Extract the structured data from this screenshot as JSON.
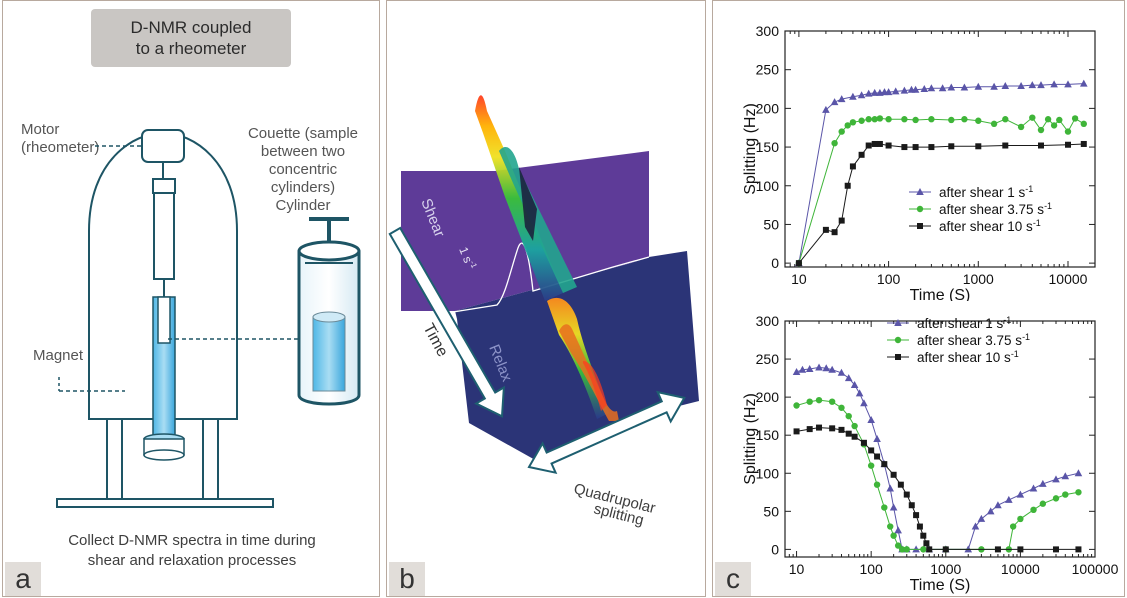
{
  "panel_a": {
    "letter": "a",
    "title_line1": "D-NMR coupled",
    "title_line2": "to a rheometer",
    "motor_line1": "Motor",
    "motor_line2": "(rheometer)",
    "couette_lines": [
      "Couette (sample",
      "between two",
      "concentric",
      "cylinders)",
      "Cylinder"
    ],
    "magnet": "Magnet",
    "caption_line1": "Collect D-NMR spectra in time during",
    "caption_line2": "shear and relaxation processes"
  },
  "panel_b": {
    "letter": "b",
    "shear": "Shear",
    "rate": "1 s",
    "rate_sup": "-1",
    "relax": "Relax",
    "time": "Time",
    "quad_line1": "Quadrupolar",
    "quad_line2": "splitting"
  },
  "panel_c": {
    "letter": "c"
  },
  "chart_data": [
    {
      "type": "scatter",
      "xlabel": "Time (S)",
      "ylabel": "Splitting (Hz)",
      "xscale": "log",
      "xlim": [
        7,
        20000
      ],
      "ylim": [
        -5,
        300
      ],
      "yticks": [
        0,
        50,
        100,
        150,
        200,
        250,
        300
      ],
      "xticks": [
        10,
        100,
        1000,
        10000
      ],
      "xtick_labels": [
        "10",
        "100",
        "1000",
        "10000"
      ],
      "legend_position": "center-right",
      "series": [
        {
          "name": "after shear 1 s",
          "name_sup": "-1",
          "color": "#5a55a8",
          "marker": "triangle",
          "x": [
            10,
            20,
            25,
            30,
            40,
            50,
            60,
            70,
            80,
            90,
            100,
            120,
            150,
            180,
            200,
            250,
            300,
            400,
            500,
            700,
            1000,
            1500,
            2000,
            3000,
            4000,
            5000,
            7000,
            10000,
            15000
          ],
          "y": [
            0,
            198,
            208,
            212,
            215,
            217,
            219,
            220,
            220,
            221,
            221,
            222,
            223,
            224,
            224,
            225,
            226,
            226,
            227,
            227,
            228,
            228,
            229,
            229,
            230,
            230,
            231,
            231,
            232
          ]
        },
        {
          "name": "after shear 3.75 s",
          "name_sup": "-1",
          "color": "#3fb539",
          "marker": "circle",
          "x": [
            10,
            25,
            30,
            35,
            40,
            50,
            60,
            70,
            80,
            100,
            150,
            200,
            300,
            500,
            700,
            1000,
            1500,
            2000,
            3000,
            4000,
            5000,
            6000,
            7000,
            8000,
            10000,
            12000,
            15000
          ],
          "y": [
            0,
            155,
            170,
            178,
            182,
            184,
            186,
            186,
            187,
            186,
            186,
            185,
            186,
            185,
            186,
            184,
            180,
            186,
            176,
            188,
            172,
            186,
            178,
            185,
            170,
            187,
            180
          ]
        },
        {
          "name": "after shear 10 s",
          "name_sup": "-1",
          "color": "#1a1a1a",
          "marker": "square",
          "x": [
            10,
            20,
            25,
            30,
            35,
            40,
            50,
            60,
            70,
            80,
            100,
            150,
            200,
            300,
            500,
            1000,
            2000,
            5000,
            10000,
            15000
          ],
          "y": [
            0,
            43,
            40,
            55,
            100,
            125,
            140,
            152,
            154,
            154,
            152,
            150,
            150,
            150,
            151,
            151,
            152,
            152,
            153,
            154
          ]
        }
      ]
    },
    {
      "type": "scatter",
      "xlabel": "Time (S)",
      "ylabel": "Splitting (Hz)",
      "xscale": "log",
      "xlim": [
        7,
        100000
      ],
      "ylim": [
        -10,
        300
      ],
      "yticks": [
        0,
        50,
        100,
        150,
        200,
        250,
        300
      ],
      "xticks": [
        10,
        100,
        1000,
        10000,
        100000
      ],
      "xtick_labels": [
        "10",
        "100",
        "1000",
        "10000",
        "100000"
      ],
      "legend_position": "top-center",
      "series": [
        {
          "name": "after shear 1 s",
          "name_sup": "-1",
          "color": "#5a55a8",
          "marker": "triangle",
          "x": [
            10,
            12,
            15,
            20,
            25,
            30,
            40,
            50,
            60,
            70,
            80,
            100,
            120,
            150,
            180,
            200,
            230,
            260,
            300,
            400,
            600,
            1000,
            2000,
            2500,
            3000,
            4000,
            5000,
            7000,
            10000,
            15000,
            20000,
            30000,
            40000,
            60000
          ],
          "y": [
            233,
            236,
            237,
            239,
            238,
            236,
            232,
            225,
            216,
            205,
            192,
            170,
            145,
            112,
            80,
            55,
            25,
            0,
            0,
            0,
            0,
            0,
            0,
            30,
            40,
            50,
            58,
            65,
            72,
            80,
            86,
            92,
            96,
            100
          ]
        },
        {
          "name": "after shear 3.75 s",
          "name_sup": "-1",
          "color": "#3fb539",
          "marker": "circle",
          "x": [
            10,
            15,
            20,
            30,
            40,
            50,
            60,
            80,
            100,
            120,
            150,
            180,
            200,
            230,
            260,
            300,
            500,
            1000,
            3000,
            7000,
            8000,
            10000,
            15000,
            20000,
            30000,
            40000,
            60000
          ],
          "y": [
            189,
            194,
            196,
            194,
            186,
            175,
            162,
            138,
            110,
            85,
            55,
            30,
            18,
            5,
            0,
            0,
            0,
            0,
            0,
            0,
            30,
            40,
            52,
            60,
            67,
            72,
            75
          ]
        },
        {
          "name": "after shear 10 s",
          "name_sup": "-1",
          "color": "#1a1a1a",
          "marker": "square",
          "x": [
            10,
            15,
            20,
            30,
            40,
            50,
            60,
            80,
            100,
            120,
            150,
            200,
            250,
            300,
            350,
            400,
            450,
            500,
            550,
            600,
            1000,
            5000,
            10000,
            30000,
            60000
          ],
          "y": [
            155,
            158,
            160,
            159,
            157,
            152,
            148,
            140,
            130,
            122,
            112,
            98,
            85,
            72,
            58,
            45,
            30,
            18,
            8,
            0,
            0,
            0,
            0,
            0,
            0
          ]
        }
      ]
    }
  ]
}
